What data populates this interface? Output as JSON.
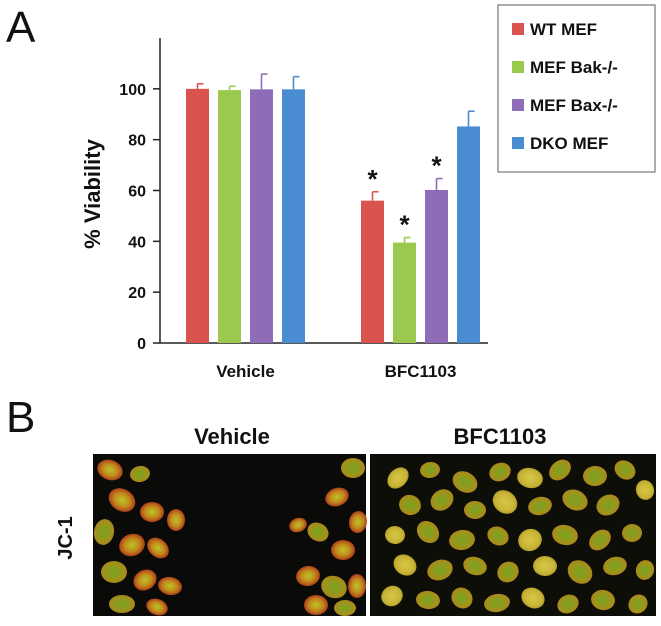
{
  "panels": {
    "a_letter": "A",
    "b_letter": "B"
  },
  "chart_data": {
    "type": "bar",
    "title": "",
    "xlabel": "",
    "ylabel": "% Viability",
    "ylim": [
      0,
      120
    ],
    "yticks": [
      0,
      20,
      40,
      60,
      80,
      100
    ],
    "categories": [
      "Vehicle",
      "BFC1103"
    ],
    "series": [
      {
        "name": "WT MEF",
        "color": "#d9534f",
        "values": [
          100,
          56
        ],
        "errors": [
          2,
          3.5
        ]
      },
      {
        "name": "MEF Bak-/-",
        "color": "#9bc94e",
        "values": [
          99.5,
          39.5
        ],
        "errors": [
          1.5,
          2
        ]
      },
      {
        "name": "MEF Bax-/-",
        "color": "#8e6cb7",
        "values": [
          99.8,
          60.2
        ],
        "errors": [
          6,
          4.5
        ]
      },
      {
        "name": "DKO MEF",
        "color": "#4a8cd1",
        "values": [
          99.8,
          85.2
        ],
        "errors": [
          5,
          6
        ]
      }
    ],
    "annotations": [
      {
        "category": "BFC1103",
        "series": "WT MEF",
        "text": "*"
      },
      {
        "category": "BFC1103",
        "series": "MEF Bak-/-",
        "text": "*"
      },
      {
        "category": "BFC1103",
        "series": "MEF Bax-/-",
        "text": "*"
      }
    ],
    "legend_position": "top-right",
    "grid": false
  },
  "micrographs": {
    "row_label": "JC-1",
    "images": [
      {
        "title": "Vehicle"
      },
      {
        "title": "BFC1103"
      }
    ]
  }
}
